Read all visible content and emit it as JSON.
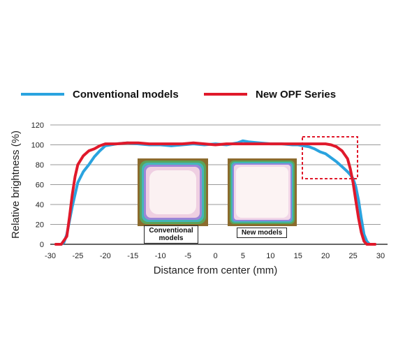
{
  "legend": {
    "conventional": "Conventional models",
    "opf": "New OPF Series"
  },
  "insets": {
    "conventional_label": "Conventional models",
    "new_label": "New models"
  },
  "colors": {
    "conventional": "#2aa3df",
    "opf": "#e0192b",
    "grid": "#999999",
    "highlight_box": "#e0192b"
  },
  "chart_data": {
    "type": "line",
    "xlabel": "Distance from center (mm)",
    "ylabel": "Relative brightness (%)",
    "xlim": [
      -30,
      30
    ],
    "ylim": [
      0,
      120
    ],
    "xticks": [
      -30,
      -25,
      -20,
      -15,
      -10,
      -5,
      0,
      5,
      10,
      15,
      20,
      25,
      30
    ],
    "yticks": [
      0,
      20,
      40,
      60,
      80,
      100,
      120
    ],
    "grid": "horizontal",
    "legend_position": "top",
    "series": [
      {
        "name": "Conventional models",
        "x": [
          -29,
          -28,
          -27.5,
          -27,
          -26,
          -25,
          -24,
          -23,
          -22,
          -21,
          -20,
          -19,
          -18,
          -16,
          -14,
          -12,
          -10,
          -8,
          -6,
          -4,
          -2,
          0,
          2,
          4,
          5,
          6,
          8,
          10,
          12,
          14,
          15,
          16,
          17,
          18,
          19,
          20,
          21,
          22,
          23,
          24,
          24.5,
          25,
          25.5,
          26,
          26.5,
          27,
          27.5,
          28,
          29
        ],
        "y": [
          0,
          0,
          2,
          10,
          38,
          62,
          73,
          80,
          88,
          94,
          99,
          100,
          101,
          102,
          101,
          100,
          100,
          99,
          100,
          101,
          100,
          101,
          100,
          102,
          104,
          103,
          102,
          101,
          101,
          100,
          100,
          99,
          98,
          96,
          93,
          91,
          87,
          83,
          78,
          73,
          70,
          66,
          58,
          44,
          26,
          10,
          3,
          0,
          0
        ]
      },
      {
        "name": "New OPF Series",
        "x": [
          -29,
          -28,
          -27,
          -26.5,
          -26,
          -25.5,
          -25,
          -24,
          -23,
          -22,
          -21,
          -20,
          -19,
          -18,
          -16,
          -14,
          -12,
          -10,
          -8,
          -6,
          -4,
          -2,
          0,
          2,
          4,
          6,
          8,
          10,
          12,
          14,
          16,
          18,
          20,
          21,
          22,
          23,
          24,
          24.5,
          25,
          25.5,
          26,
          26.5,
          27,
          27.5,
          28,
          29
        ],
        "y": [
          0,
          0,
          8,
          28,
          50,
          68,
          80,
          89,
          94,
          96,
          99,
          101,
          101,
          101,
          102,
          102,
          101,
          101,
          101,
          101,
          102,
          101,
          100,
          101,
          101,
          101,
          101,
          101,
          101,
          101,
          101,
          101,
          101,
          100,
          98,
          94,
          86,
          76,
          62,
          44,
          26,
          12,
          3,
          0,
          0,
          0
        ]
      }
    ]
  }
}
